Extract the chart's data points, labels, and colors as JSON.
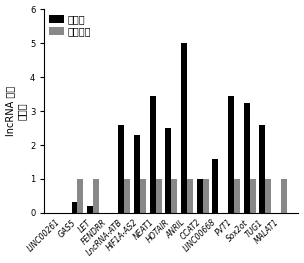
{
  "categories": [
    "LINC00261",
    "GAS5",
    "LET",
    "FENDRR",
    "LncRNA-ATB",
    "HIF1A-AS2",
    "NEAT1",
    "HOTAIR",
    "ANRIL",
    "CCAT2",
    "LINC00668",
    "PVT1",
    "Sox2ot",
    "TUG1",
    "MALAT1"
  ],
  "patients": [
    0.0,
    0.32,
    0.22,
    0.0,
    2.6,
    2.3,
    3.45,
    2.5,
    5.0,
    1.0,
    1.6,
    3.45,
    3.25,
    2.6,
    0.0
  ],
  "healthy": [
    0.0,
    1.0,
    1.0,
    0.0,
    1.0,
    1.0,
    1.0,
    1.0,
    1.0,
    1.0,
    0.0,
    1.0,
    1.0,
    1.0,
    1.0
  ],
  "patient_color": "#000000",
  "healthy_color": "#888888",
  "ylabel_line1": "lncRNA 相对",
  "ylabel_line2": "表达量",
  "ylim": [
    0,
    6
  ],
  "yticks": [
    0,
    1,
    2,
    3,
    4,
    5,
    6
  ],
  "legend_patient": "癌患者",
  "legend_healthy": "健康对照",
  "bar_width": 0.38,
  "tick_fontsize": 5.5,
  "legend_fontsize": 7.0,
  "ylabel_fontsize": 7.0
}
